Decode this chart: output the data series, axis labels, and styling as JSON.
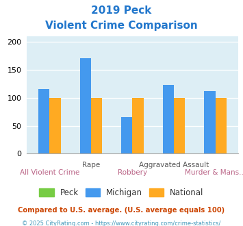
{
  "title_line1": "2019 Peck",
  "title_line2": "Violent Crime Comparison",
  "michigan_values": [
    115,
    170,
    65,
    123,
    112
  ],
  "national_values": [
    100,
    100,
    100,
    100,
    100
  ],
  "bar_color_peck": "#77cc44",
  "bar_color_michigan": "#4499ee",
  "bar_color_national": "#ffaa22",
  "ylim": [
    0,
    210
  ],
  "yticks": [
    0,
    50,
    100,
    150,
    200
  ],
  "title_color": "#2277cc",
  "bg_color": "#ddeef5",
  "legend_labels": [
    "Peck",
    "Michigan",
    "National"
  ],
  "top_labels": [
    "",
    "Rape",
    "",
    "Aggravated Assault",
    ""
  ],
  "bottom_labels": [
    "All Violent Crime",
    "",
    "Robbery",
    "",
    "Murder & Mans..."
  ],
  "top_label_color": "#555555",
  "bottom_label_color": "#bb6688",
  "footnote1": "Compared to U.S. average. (U.S. average equals 100)",
  "footnote2": "© 2025 CityRating.com - https://www.cityrating.com/crime-statistics/",
  "footnote1_color": "#cc4400",
  "footnote2_color": "#4499bb"
}
